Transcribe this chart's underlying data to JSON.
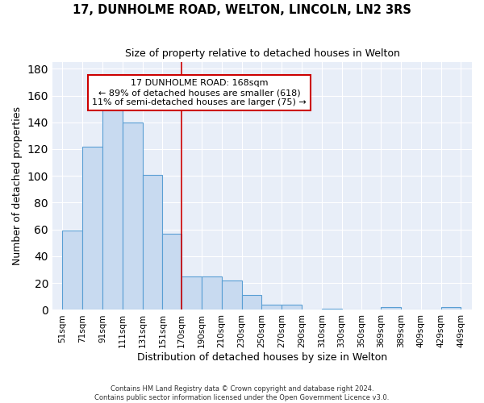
{
  "title": "17, DUNHOLME ROAD, WELTON, LINCOLN, LN2 3RS",
  "subtitle": "Size of property relative to detached houses in Welton",
  "xlabel": "Distribution of detached houses by size in Welton",
  "ylabel": "Number of detached properties",
  "footnote1": "Contains HM Land Registry data © Crown copyright and database right 2024.",
  "footnote2": "Contains public sector information licensed under the Open Government Licence v3.0.",
  "bar_left_edges": [
    51,
    71,
    91,
    111,
    131,
    151,
    170,
    190,
    210,
    230,
    250,
    270,
    290,
    310,
    330,
    350,
    369,
    389,
    409,
    429
  ],
  "bar_widths": [
    20,
    20,
    20,
    20,
    20,
    19,
    20,
    20,
    20,
    20,
    20,
    20,
    20,
    20,
    20,
    19,
    20,
    20,
    20,
    20
  ],
  "bar_heights": [
    59,
    122,
    150,
    140,
    101,
    57,
    25,
    25,
    22,
    11,
    4,
    4,
    0,
    1,
    0,
    0,
    2,
    0,
    0,
    2
  ],
  "bar_color": "#c8daf0",
  "bar_edge_color": "#5a9fd4",
  "tick_labels": [
    "51sqm",
    "71sqm",
    "91sqm",
    "111sqm",
    "131sqm",
    "151sqm",
    "170sqm",
    "190sqm",
    "210sqm",
    "230sqm",
    "250sqm",
    "270sqm",
    "290sqm",
    "310sqm",
    "330sqm",
    "350sqm",
    "369sqm",
    "389sqm",
    "409sqm",
    "429sqm",
    "449sqm"
  ],
  "tick_positions": [
    51,
    71,
    91,
    111,
    131,
    151,
    170,
    190,
    210,
    230,
    250,
    270,
    290,
    310,
    330,
    350,
    369,
    389,
    409,
    429,
    449
  ],
  "property_line_x": 170,
  "annotation_text": "17 DUNHOLME ROAD: 168sqm\n← 89% of detached houses are smaller (618)\n11% of semi-detached houses are larger (75) →",
  "ylim": [
    0,
    185
  ],
  "xlim": [
    41,
    460
  ],
  "bg_color": "#ffffff",
  "plot_bg_color": "#e8eef8",
  "grid_color": "#ffffff",
  "title_fontsize": 10.5,
  "subtitle_fontsize": 9,
  "axis_label_fontsize": 9,
  "tick_fontsize": 7.5,
  "annotation_fontsize": 8,
  "line_color": "#cc0000",
  "annotation_box_color": "#cc0000"
}
